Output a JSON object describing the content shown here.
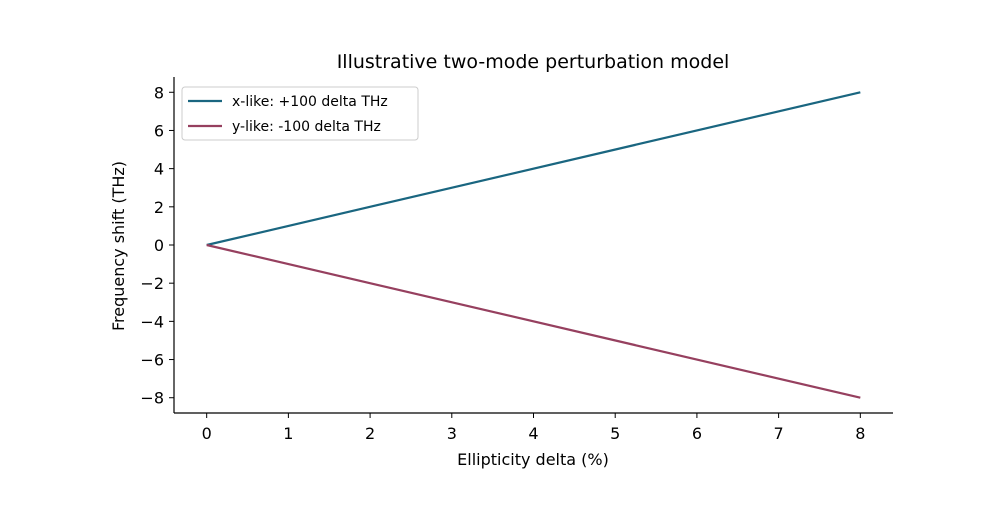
{
  "chart_data": {
    "type": "line",
    "title": "Illustrative two-mode perturbation model",
    "xlabel": "Ellipticity delta (%)",
    "ylabel": "Frequency shift (THz)",
    "xlim": [
      -0.4,
      8.4
    ],
    "ylim": [
      -8.8,
      8.8
    ],
    "xticks": [
      0,
      1,
      2,
      3,
      4,
      5,
      6,
      7,
      8
    ],
    "xtick_labels": [
      "0",
      "1",
      "2",
      "3",
      "4",
      "5",
      "6",
      "7",
      "8"
    ],
    "yticks": [
      8,
      6,
      4,
      2,
      0,
      -2,
      -4,
      -6,
      -8
    ],
    "ytick_labels": [
      "8",
      "6",
      "4",
      "2",
      "0",
      "−2",
      "−4",
      "−6",
      "−8"
    ],
    "grid": false,
    "legend_position": "top-left",
    "x": [
      0,
      8
    ],
    "series": [
      {
        "name": "x-like: +100 delta THz",
        "values": [
          0,
          8
        ],
        "color": "#1a6680"
      },
      {
        "name": "y-like: -100 delta THz",
        "values": [
          0,
          -8
        ],
        "color": "#96405f"
      }
    ]
  }
}
